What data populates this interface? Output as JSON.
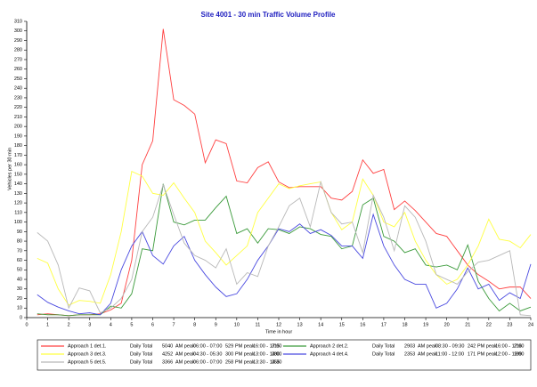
{
  "chart_data": {
    "type": "line",
    "title": "Site 4001 - 30 min Traffic Volume Profile",
    "x_label": "Time in hour",
    "y_label": "Vehicles per 30 min",
    "xlim": [
      0,
      24
    ],
    "ylim": [
      0,
      310
    ],
    "xticks": [
      0,
      1,
      2,
      3,
      4,
      5,
      6,
      7,
      8,
      9,
      10,
      11,
      12,
      13,
      14,
      15,
      16,
      17,
      18,
      19,
      20,
      21,
      22,
      23,
      24
    ],
    "yticks": [
      0,
      10,
      20,
      30,
      40,
      50,
      60,
      70,
      80,
      90,
      100,
      110,
      120,
      130,
      140,
      150,
      160,
      170,
      180,
      190,
      200,
      210,
      220,
      230,
      240,
      250,
      260,
      270,
      280,
      290,
      300,
      310
    ],
    "x": [
      0.5,
      1,
      1.5,
      2,
      2.5,
      3,
      3.5,
      4,
      4.5,
      5,
      5.5,
      6,
      6.5,
      7,
      7.5,
      8,
      8.5,
      9,
      9.5,
      10,
      10.5,
      11,
      11.5,
      12,
      12.5,
      13,
      13.5,
      14,
      14.5,
      15,
      15.5,
      16,
      16.5,
      17,
      17.5,
      18,
      18.5,
      19,
      19.5,
      20,
      20.5,
      21,
      21.5,
      22,
      22.5,
      23,
      23.5,
      24
    ],
    "legend_labels": {
      "daily_total": "Daily Total",
      "am_peak": "AM peak",
      "pm_peak": "PM peak"
    },
    "series": [
      {
        "name": "Approach 1 det.1.",
        "color": "#ff4040",
        "daily_total": 5040,
        "am_peak": "06:00 - 07:00",
        "am_peak_volume": 529,
        "pm_peak": "16:00 - 17:00",
        "pm_peak_volume": 315,
        "values": [
          3,
          4,
          3,
          2,
          3,
          3,
          4,
          8,
          15,
          60,
          160,
          185,
          302,
          228,
          222,
          213,
          162,
          186,
          182,
          143,
          141,
          157,
          163,
          142,
          136,
          137,
          137,
          137,
          125,
          123,
          132,
          165,
          151,
          155,
          113,
          122,
          112,
          100,
          88,
          85,
          70,
          55,
          45,
          38,
          30,
          32,
          32,
          20
        ]
      },
      {
        "name": "Approach 2 det.2.",
        "color": "#3a9a3a",
        "daily_total": 2903,
        "am_peak": "08:30 - 09:30",
        "am_peak_volume": 242,
        "pm_peak": "16:00 - 17:00",
        "pm_peak_volume": 216,
        "values": [
          4,
          3,
          3,
          2,
          3,
          3,
          3,
          12,
          10,
          25,
          72,
          70,
          140,
          100,
          97,
          102,
          102,
          115,
          127,
          88,
          93,
          78,
          93,
          92,
          88,
          95,
          93,
          87,
          85,
          72,
          75,
          118,
          125,
          85,
          80,
          68,
          72,
          55,
          53,
          55,
          50,
          76,
          38,
          20,
          7,
          15,
          7,
          11
        ]
      },
      {
        "name": "Approach 3 det.3.",
        "color": "#ffff40",
        "daily_total": 4252,
        "am_peak": "04:30 - 05:30",
        "am_peak_volume": 300,
        "pm_peak": "13:00 - 14:00",
        "pm_peak_volume": 280,
        "values": [
          62,
          57,
          30,
          13,
          18,
          17,
          15,
          45,
          90,
          153,
          148,
          130,
          128,
          141,
          125,
          110,
          80,
          68,
          55,
          65,
          75,
          110,
          125,
          140,
          135,
          138,
          140,
          142,
          110,
          92,
          100,
          145,
          128,
          100,
          95,
          110,
          80,
          60,
          45,
          35,
          40,
          55,
          75,
          103,
          82,
          80,
          73,
          87
        ]
      },
      {
        "name": "Approach 4 det.4.",
        "color": "#4a4ae0",
        "daily_total": 2353,
        "am_peak": "11:00 - 12:00",
        "am_peak_volume": 171,
        "pm_peak": "12:00 - 13:00",
        "pm_peak_volume": 189,
        "values": [
          24,
          16,
          11,
          7,
          4,
          5,
          3,
          15,
          50,
          75,
          90,
          65,
          56,
          75,
          85,
          60,
          45,
          32,
          22,
          25,
          40,
          60,
          75,
          93,
          90,
          98,
          88,
          92,
          86,
          75,
          75,
          62,
          108,
          75,
          55,
          40,
          35,
          35,
          10,
          15,
          30,
          52,
          30,
          35,
          18,
          26,
          20,
          56
        ]
      },
      {
        "name": "Approach 5 det.5.",
        "color": "#b8b8b8",
        "daily_total": 3366,
        "am_peak": "06:00 - 07:00",
        "am_peak_volume": 258,
        "pm_peak": "13:30 - 14:30",
        "pm_peak_volume": 255,
        "values": [
          89,
          80,
          55,
          10,
          31,
          28,
          5,
          10,
          20,
          40,
          90,
          105,
          139,
          108,
          78,
          65,
          60,
          52,
          72,
          35,
          47,
          43,
          75,
          95,
          117,
          125,
          95,
          142,
          110,
          98,
          100,
          68,
          128,
          105,
          70,
          117,
          105,
          80,
          45,
          40,
          35,
          48,
          58,
          60,
          65,
          70,
          3,
          2
        ]
      }
    ]
  }
}
